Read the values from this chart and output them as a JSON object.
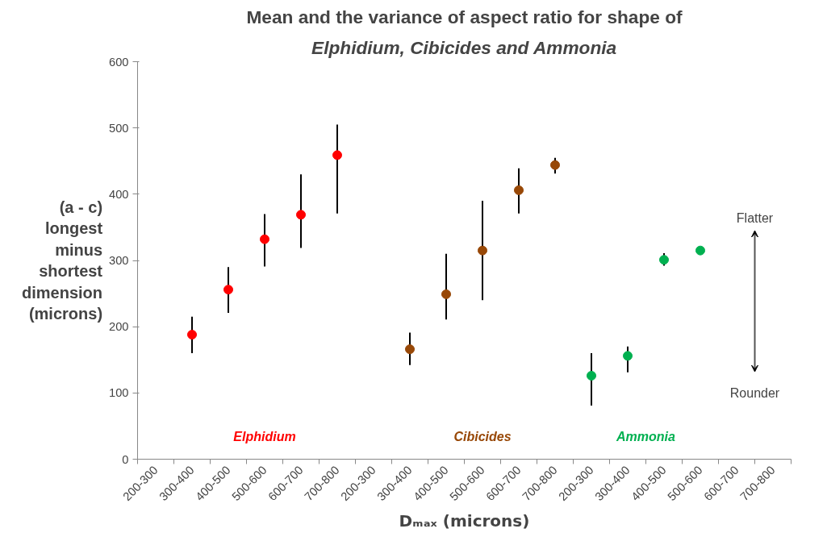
{
  "chart_data": {
    "type": "scatter",
    "title": "Mean and the variance of aspect ratio for shape of",
    "subtitle": "Elphidium, Cibicides and Ammonia",
    "xlabel": "Dₘₐₓ (microns)",
    "ylabel": "(a - c)\nlongest\nminus\nshortest\ndimension\n(microns)",
    "categories": [
      "200-300",
      "300-400",
      "400-500",
      "500-600",
      "600-700",
      "700-800",
      "200-300",
      "300-400",
      "400-500",
      "500-600",
      "600-700",
      "700-800",
      "200-300",
      "300-400",
      "400-500",
      "500-600",
      "600-700",
      "700-800"
    ],
    "series": [
      {
        "name": "Elphidium",
        "color": "#ff0000",
        "values": [
          null,
          188,
          256,
          332,
          369,
          459,
          null,
          null,
          null,
          null,
          null,
          null,
          null,
          null,
          null,
          null,
          null,
          null
        ],
        "errors": [
          null,
          [
            160,
            215
          ],
          [
            221,
            290
          ],
          [
            291,
            370
          ],
          [
            319,
            430
          ],
          [
            371,
            505
          ],
          null,
          null,
          null,
          null,
          null,
          null,
          null,
          null,
          null,
          null,
          null,
          null
        ]
      },
      {
        "name": "Cibicides",
        "color": "#984807",
        "values": [
          null,
          null,
          null,
          null,
          null,
          null,
          null,
          166,
          249,
          315,
          406,
          444,
          null,
          null,
          null,
          null,
          null,
          null
        ],
        "errors": [
          null,
          null,
          null,
          null,
          null,
          null,
          null,
          [
            142,
            191
          ],
          [
            211,
            310
          ],
          [
            240,
            390
          ],
          [
            371,
            439
          ],
          [
            431,
            455
          ],
          null,
          null,
          null,
          null,
          null,
          null
        ]
      },
      {
        "name": "Ammonia",
        "color": "#00b050",
        "values": [
          null,
          null,
          null,
          null,
          null,
          null,
          null,
          null,
          null,
          null,
          null,
          null,
          126,
          156,
          301,
          315,
          null,
          null
        ],
        "errors": [
          null,
          null,
          null,
          null,
          null,
          null,
          null,
          null,
          null,
          null,
          null,
          null,
          [
            81,
            160
          ],
          [
            131,
            170
          ],
          [
            292,
            311
          ],
          null,
          null,
          null
        ]
      }
    ],
    "annotations": [
      "Flatter",
      "Rounder"
    ],
    "ylim": [
      0,
      600
    ],
    "yticks": [
      0,
      100,
      200,
      300,
      400,
      500,
      600
    ],
    "grid": false,
    "marker": "circle"
  }
}
